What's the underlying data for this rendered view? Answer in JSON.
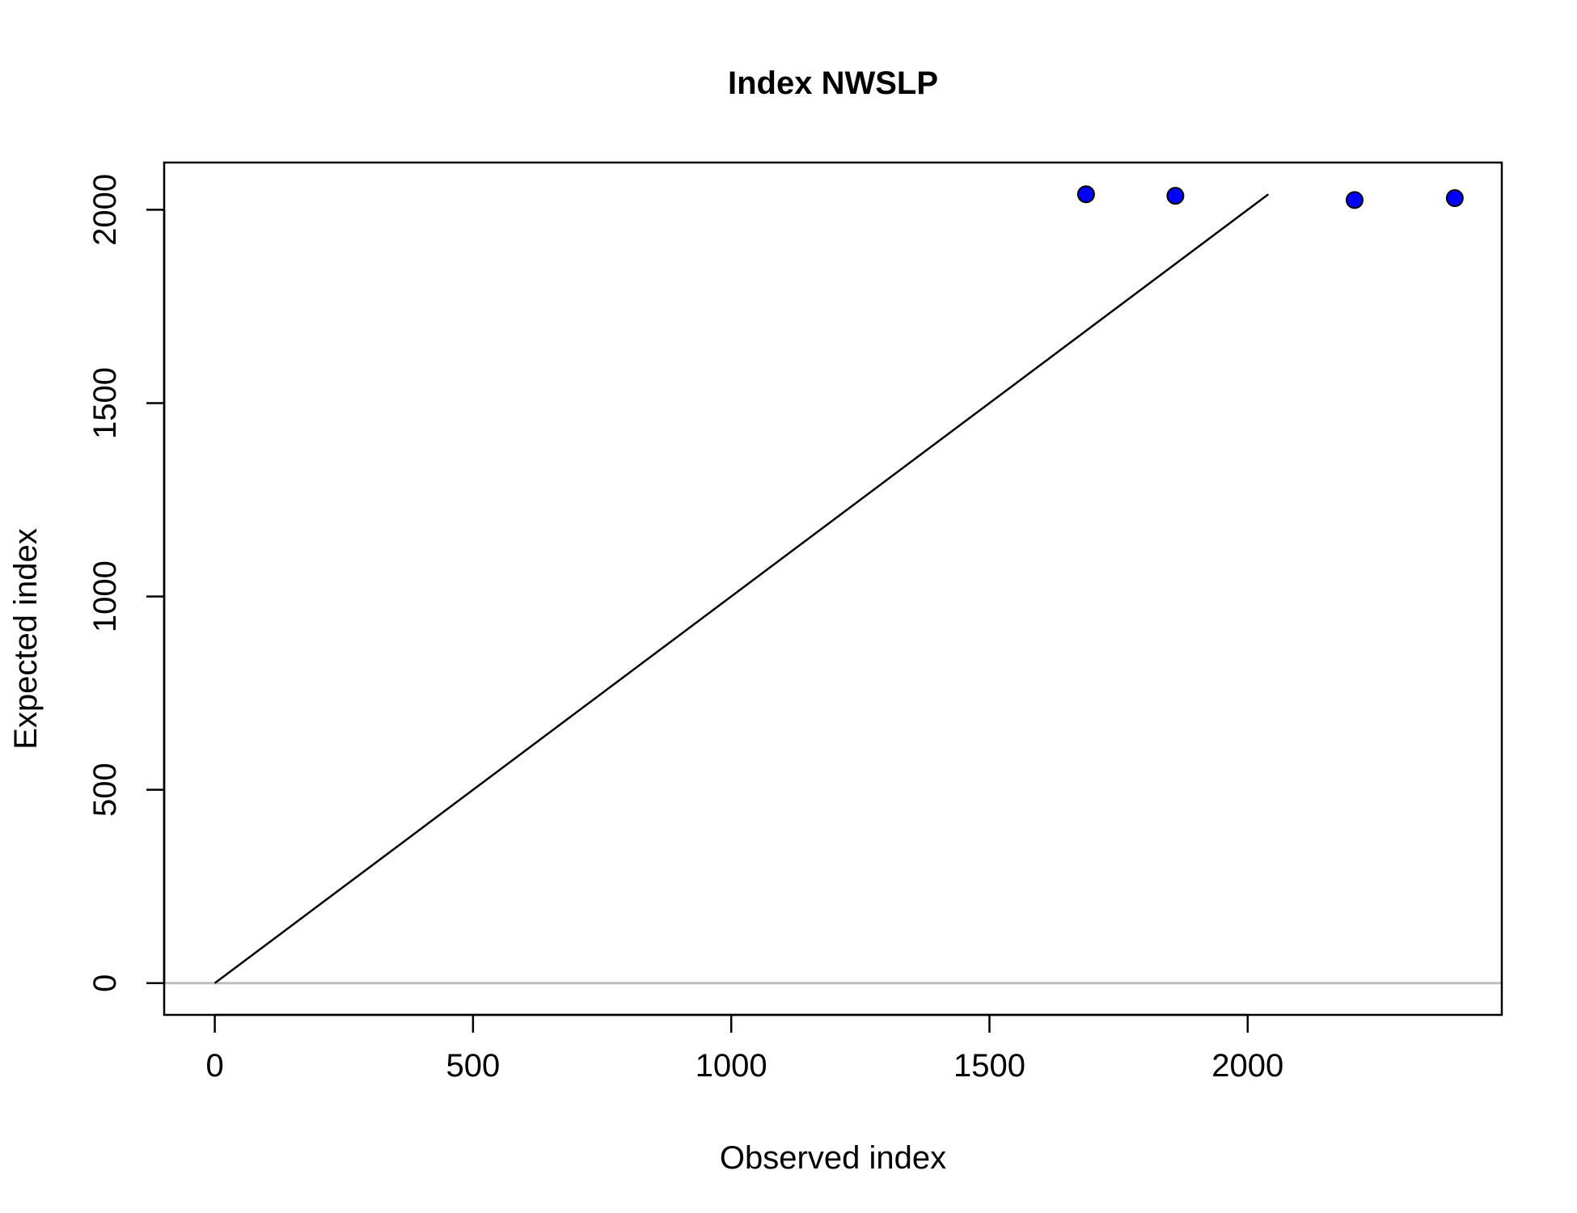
{
  "chart_data": {
    "type": "scatter",
    "title": "Index NWSLP",
    "xlabel": "Observed index",
    "ylabel": "Expected index",
    "xlim": [
      -98,
      2492
    ],
    "ylim": [
      -82,
      2122
    ],
    "x_ticks": [
      0,
      500,
      1000,
      1500,
      2000
    ],
    "y_ticks": [
      0,
      500,
      1000,
      1500,
      2000
    ],
    "points": [
      {
        "x": 1687,
        "y": 2040
      },
      {
        "x": 1860,
        "y": 2036
      },
      {
        "x": 2207,
        "y": 2025
      },
      {
        "x": 2401,
        "y": 2030
      }
    ],
    "reference_line": {
      "from": [
        0,
        0
      ],
      "to": [
        2040,
        2040
      ]
    },
    "zero_line": {
      "y": 0,
      "color": "#bebebe"
    },
    "point_color": "#0000ff",
    "line_color": "#000000",
    "grid": false,
    "legend": "none"
  }
}
